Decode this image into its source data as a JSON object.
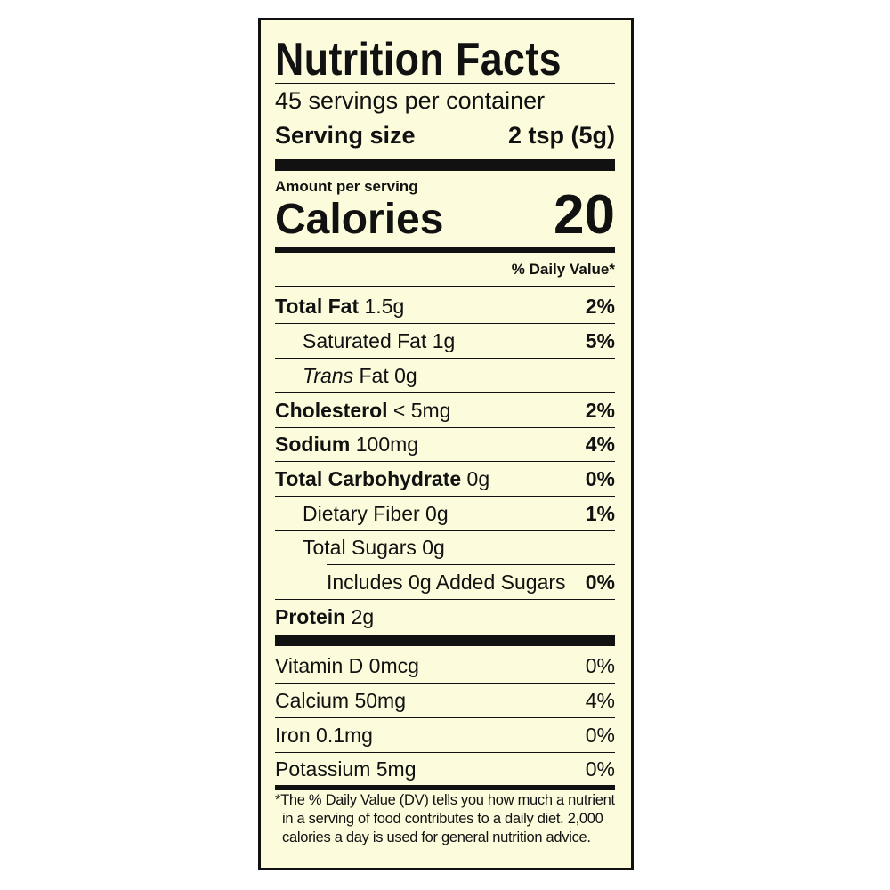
{
  "title": "Nutrition Facts",
  "servings_per_container": "45 servings per container",
  "serving_size": {
    "label": "Serving size",
    "value": "2 tsp (5g)"
  },
  "amount_per_serving": "Amount per serving",
  "calories": {
    "label": "Calories",
    "value": "20"
  },
  "daily_value_header": "% Daily Value*",
  "nutrients": [
    {
      "name": "Total Fat",
      "amount": "1.5g",
      "dv": "2%"
    },
    {
      "name": "Saturated Fat",
      "amount": "1g",
      "dv": "5%"
    },
    {
      "name": "Trans",
      "name_suffix": "Fat",
      "amount": "0g",
      "dv": ""
    },
    {
      "name": "Cholesterol",
      "amount": "< 5mg",
      "dv": "2%"
    },
    {
      "name": "Sodium",
      "amount": "100mg",
      "dv": "4%"
    },
    {
      "name": "Total Carbohydrate",
      "amount": "0g",
      "dv": "0%"
    },
    {
      "name": "Dietary Fiber",
      "amount": "0g",
      "dv": "1%"
    },
    {
      "name": "Total Sugars",
      "amount": "0g",
      "dv": ""
    },
    {
      "name": "Includes 0g Added Sugars",
      "amount": "",
      "dv": "0%"
    },
    {
      "name": "Protein",
      "amount": "2g",
      "dv": ""
    }
  ],
  "vitamins": [
    {
      "name": "Vitamin D",
      "amount": "0mcg",
      "dv": "0%"
    },
    {
      "name": "Calcium",
      "amount": "50mg",
      "dv": "4%"
    },
    {
      "name": "Iron",
      "amount": "0.1mg",
      "dv": "0%"
    },
    {
      "name": "Potassium",
      "amount": "5mg",
      "dv": "0%"
    }
  ],
  "footnote": "*The % Daily Value (DV) tells you how much a nutrient in a serving of food contributes to a daily diet. 2,000 calories a day is used for general nutrition advice.",
  "colors": {
    "background": "#fcfcdc",
    "ink": "#111111"
  }
}
